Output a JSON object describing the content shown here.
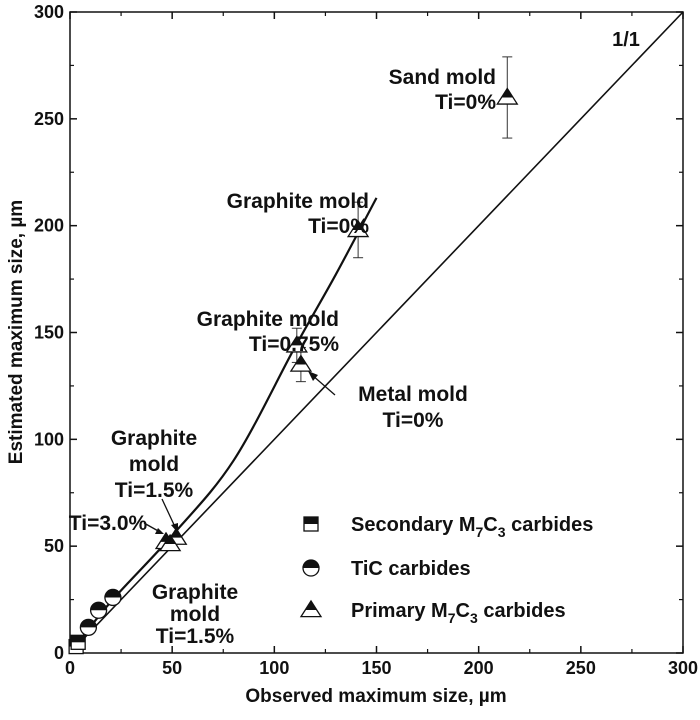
{
  "chart_data": {
    "type": "scatter",
    "xlabel": "Observed maximum size, µm",
    "ylabel": "Estimated maximum size, µm",
    "xlim": [
      0,
      300
    ],
    "ylim": [
      0,
      300
    ],
    "xticks": [
      0,
      50,
      100,
      150,
      200,
      250,
      300
    ],
    "yticks": [
      0,
      50,
      100,
      150,
      200,
      250,
      300
    ],
    "grid": false,
    "legend_position": "lower-right",
    "reference_line_label": "1/1",
    "legend": [
      {
        "name": "Secondary M7C3 carbides",
        "marker": "half-filled-square"
      },
      {
        "name": "TiC carbides",
        "marker": "half-filled-circle"
      },
      {
        "name": "Primary M7C3 carbides",
        "marker": "half-filled-triangle"
      }
    ],
    "series": [
      {
        "name": "Secondary M7C3 carbides",
        "points": [
          {
            "x": 3,
            "y": 3
          },
          {
            "x": 4,
            "y": 5
          }
        ]
      },
      {
        "name": "TiC carbides",
        "points": [
          {
            "x": 9,
            "y": 12
          },
          {
            "x": 14,
            "y": 20
          },
          {
            "x": 21,
            "y": 26
          }
        ]
      },
      {
        "name": "Primary M7C3 carbides",
        "points": [
          {
            "x": 214,
            "y": 260,
            "err": 19
          },
          {
            "x": 141,
            "y": 198,
            "err": 13
          },
          {
            "x": 111,
            "y": 144,
            "err": 8
          },
          {
            "x": 113,
            "y": 135,
            "err": 8
          },
          {
            "x": 47,
            "y": 52
          },
          {
            "x": 52,
            "y": 54
          },
          {
            "x": 49,
            "y": 51
          }
        ]
      }
    ],
    "trend_curve": [
      [
        0,
        0
      ],
      [
        20,
        24
      ],
      [
        50,
        55
      ],
      [
        80,
        90
      ],
      [
        110,
        143
      ],
      [
        130,
        177
      ],
      [
        150,
        213
      ]
    ],
    "annotations": [
      {
        "lines": [
          "Sand mold",
          "Ti=0%"
        ]
      },
      {
        "lines": [
          "Graphite mold",
          "Ti=0%"
        ]
      },
      {
        "lines": [
          "Graphite mold",
          "Ti=0.75%"
        ]
      },
      {
        "lines": [
          "Metal mold",
          "Ti=0%"
        ]
      },
      {
        "lines": [
          "Graphite",
          "mold",
          "Ti=1.5%"
        ]
      },
      {
        "lines": [
          "Ti=3.0%"
        ]
      },
      {
        "lines": [
          "Graphite",
          "mold",
          "Ti=1.5%"
        ]
      }
    ]
  }
}
